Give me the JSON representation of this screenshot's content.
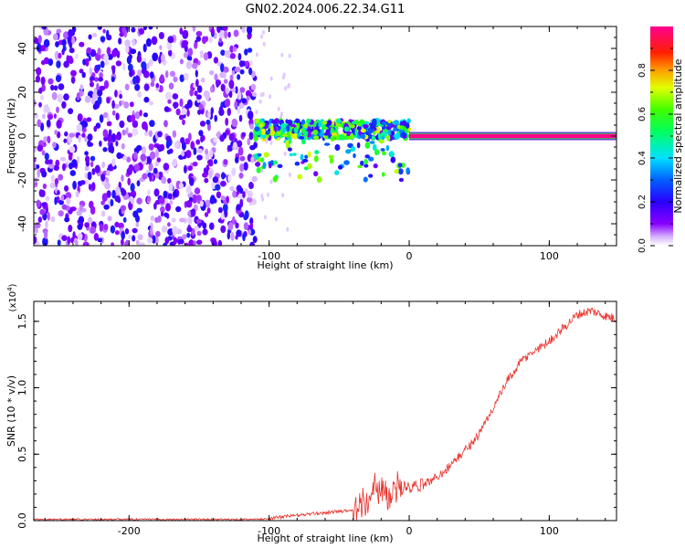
{
  "figure": {
    "title": "GN02.2024.006.22.34.G11"
  },
  "chart_data": [
    {
      "type": "heatmap",
      "xlabel": "Height of straight line (km)",
      "ylabel": "Frequency (Hz)",
      "xlim": [
        -268,
        148
      ],
      "ylim": [
        -50,
        50
      ],
      "x_ticks": [
        -200,
        -100,
        0,
        100
      ],
      "x_tick_labels": [
        "-200",
        "-100",
        "0",
        "100"
      ],
      "y_ticks": [
        -40,
        -20,
        0,
        20,
        40
      ],
      "y_tick_labels": [
        "-40",
        "-20",
        "0",
        "20",
        "40"
      ],
      "colorbar": {
        "label": "Normalized spectral amplitude",
        "range": [
          0,
          1
        ],
        "ticks": [
          0,
          0.2,
          0.4,
          0.6,
          0.8
        ],
        "tick_labels": [
          "0.0",
          "0.2",
          "0.4",
          "0.6",
          "0.8"
        ],
        "colors": [
          "#ffffff",
          "#8800ff",
          "#0000ff",
          "#00ffff",
          "#00ff00",
          "#ffff00",
          "#ff0000",
          "#ff0088"
        ]
      },
      "regions": [
        {
          "x": [
            -268,
            -110
          ],
          "y": [
            -50,
            50
          ],
          "description": "broadband noise",
          "amplitude": 0.15
        },
        {
          "x": [
            -110,
            0
          ],
          "y": [
            -20,
            8
          ],
          "description": "scattered signal cluster",
          "amplitude": 0.5
        },
        {
          "x": [
            0,
            148
          ],
          "y": [
            -1,
            1
          ],
          "description": "steady tone at 0 Hz",
          "amplitude": 1.0
        }
      ],
      "grid": false
    },
    {
      "type": "line",
      "xlabel": "Height of straight line (km)",
      "ylabel": "SNR (10 * v/v)",
      "y_scale_label": "(x10",
      "y_scale_exp": "4",
      "y_scale_close": ")",
      "xlim": [
        -268,
        148
      ],
      "ylim": [
        0,
        1.65
      ],
      "x_ticks": [
        -200,
        -100,
        0,
        100
      ],
      "x_tick_labels": [
        "-200",
        "-100",
        "0",
        "100"
      ],
      "y_ticks": [
        0,
        0.5,
        1.0,
        1.5
      ],
      "y_tick_labels": [
        "0.0",
        "0.5",
        "1.0",
        "1.5"
      ],
      "series": [
        {
          "color": "#e8322c",
          "x": [
            -268,
            -240,
            -200,
            -160,
            -130,
            -110,
            -100,
            -90,
            -80,
            -70,
            -60,
            -50,
            -40,
            -30,
            -25,
            -20,
            -15,
            -10,
            -5,
            0,
            10,
            20,
            30,
            40,
            50,
            60,
            70,
            80,
            90,
            100,
            110,
            120,
            130,
            140,
            148
          ],
          "y": [
            0.01,
            0.01,
            0.01,
            0.01,
            0.01,
            0.01,
            0.015,
            0.03,
            0.04,
            0.05,
            0.06,
            0.07,
            0.08,
            0.12,
            0.2,
            0.22,
            0.18,
            0.2,
            0.25,
            0.24,
            0.27,
            0.33,
            0.42,
            0.53,
            0.65,
            0.85,
            1.05,
            1.2,
            1.28,
            1.35,
            1.45,
            1.55,
            1.58,
            1.54,
            1.52
          ]
        }
      ],
      "grid": false
    }
  ]
}
